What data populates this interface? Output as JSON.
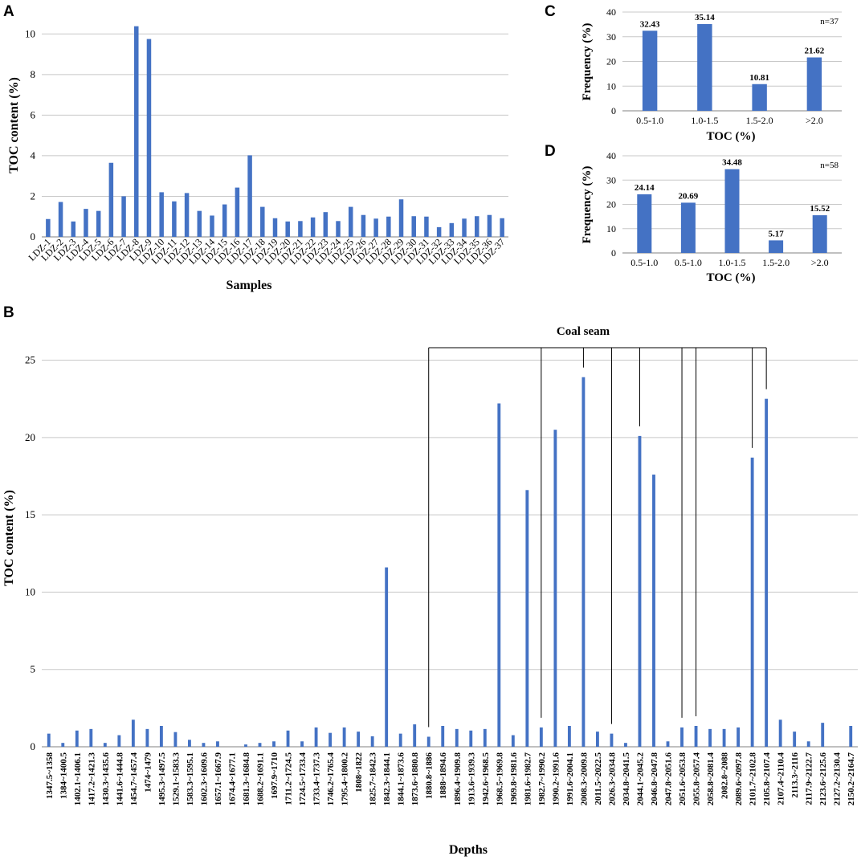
{
  "colors": {
    "bar": "#4472c4",
    "grid": "#c8c8c8",
    "axis": "#808080"
  },
  "chart_data": [
    {
      "id": "A",
      "panel_label": "A",
      "type": "bar",
      "title": "",
      "xlabel": "Samples",
      "ylabel": "TOC content (%)",
      "ylim": [
        0,
        11
      ],
      "yticks": [
        0,
        2,
        4,
        6,
        8,
        10
      ],
      "grid": true,
      "categories": [
        "LDZ-1",
        "LDZ-2",
        "LDZ-3",
        "LDZ-4",
        "LDZ-5",
        "LDZ-6",
        "LDZ-7",
        "LDZ-8",
        "LDZ-9",
        "LDZ-10",
        "LDZ-11",
        "LDZ-12",
        "LDZ-13",
        "LDZ-14",
        "LDZ-15",
        "LDZ-16",
        "LDZ-17",
        "LDZ-18",
        "LDZ-19",
        "LDZ-20",
        "LDZ-21",
        "LDZ-22",
        "LDZ-23",
        "LDZ-24",
        "LDZ-25",
        "LDZ-26",
        "LDZ-27",
        "LDZ-28",
        "LDZ-29",
        "LDZ-30",
        "LDZ-31",
        "LDZ-32",
        "LDZ-33",
        "LDZ-34",
        "LDZ-35",
        "LDZ-36",
        "LDZ-37"
      ],
      "values": [
        0.88,
        1.72,
        0.76,
        1.38,
        1.28,
        3.65,
        2.0,
        10.38,
        9.75,
        2.2,
        1.75,
        2.16,
        1.28,
        1.05,
        1.6,
        2.43,
        4.02,
        1.48,
        0.92,
        0.76,
        0.78,
        0.96,
        1.22,
        0.78,
        1.48,
        1.08,
        0.9,
        1.0,
        1.85,
        1.02,
        1.0,
        0.48,
        0.68,
        0.9,
        1.02,
        1.08,
        0.92
      ]
    },
    {
      "id": "B",
      "panel_label": "B",
      "type": "bar",
      "title": "",
      "xlabel": "Depths",
      "ylabel": "TOC content (%)",
      "ylim": [
        0,
        27
      ],
      "yticks": [
        0,
        5,
        10,
        15,
        20,
        25
      ],
      "grid": true,
      "annotation": "Coal seam",
      "coal_seam_indices": [
        27,
        35,
        38,
        40,
        42,
        45,
        46,
        50,
        51
      ],
      "categories": [
        "1347.5~1358",
        "1384~1400.5",
        "1402.1~1406.1",
        "1417.2~1421.3",
        "1430.3~1435.6",
        "1441.6~1444.8",
        "1454.7~1457.4",
        "1474~1479",
        "1495.3~1497.5",
        "1529.1~1583.3",
        "1583.3~1595.1",
        "1602.3~1609.6",
        "1657.1~1667.9",
        "1674.4~1677.1",
        "1681.3~1684.8",
        "1688.2~1691.1",
        "1697.9~1710",
        "1711.2~1724.5",
        "1724.5~1733.4",
        "1733.4~1737.3",
        "1746.2~1765.4",
        "1795.4~1800.2",
        "1808~1822",
        "1825.7~1842.3",
        "1842.3~1844.1",
        "1844.1~1873.6",
        "1873.6~1880.8",
        "1880.8~1886",
        "1888~1894.6",
        "1896.4~1909.8",
        "1913.6~1939.3",
        "1942.6~1968.5",
        "1968.5~1969.8",
        "1969.8~1981.6",
        "1981.6~1982.7",
        "1982.7~1990.2",
        "1990.2~1991.6",
        "1991.6~2004.1",
        "2008.3~2009.8",
        "2011.5~2022.5",
        "2026.3~2034.8",
        "2034.8~2041.5",
        "2044.1~2045.2",
        "2046.8~2047.8",
        "2047.8~2051.6",
        "2051.6~2053.8",
        "2055.8~2057.4",
        "2058.8~2081.4",
        "2082.8~2088",
        "2089.6~2097.8",
        "2101.7~2102.8",
        "2105.8~2107.4",
        "2107.4~2110.4",
        "2113.3~2116",
        "2117.9~2122.7",
        "2123.6~2125.6",
        "2127.2~2130.4",
        "2150.2~2164.7"
      ],
      "values": [
        0.85,
        0.25,
        1.05,
        1.15,
        0.25,
        0.75,
        1.75,
        1.15,
        1.35,
        0.95,
        0.45,
        0.25,
        0.35,
        0.0,
        0.15,
        0.25,
        0.35,
        1.05,
        0.35,
        1.25,
        0.9,
        1.25,
        0.98,
        0.68,
        11.6,
        0.85,
        1.45,
        0.65,
        1.35,
        1.15,
        1.05,
        1.15,
        22.2,
        0.75,
        16.6,
        1.25,
        20.5,
        1.35,
        23.9,
        0.98,
        0.85,
        0.25,
        20.1,
        17.6,
        0.35,
        1.25,
        1.35,
        1.15,
        1.15,
        1.25,
        18.7,
        22.5,
        1.75,
        0.98,
        0.35,
        1.55,
        0.0,
        1.35
      ]
    },
    {
      "id": "C",
      "panel_label": "C",
      "type": "bar",
      "title": "",
      "xlabel": "TOC (%)",
      "ylabel": "Frequency (%)",
      "ylim": [
        0,
        40
      ],
      "yticks": [
        0,
        10,
        20,
        30,
        40
      ],
      "grid": true,
      "note": "n=37",
      "categories": [
        "0.5-1.0",
        "1.0-1.5",
        "1.5-2.0",
        ">2.0"
      ],
      "values": [
        32.43,
        35.14,
        10.81,
        21.62
      ],
      "value_labels": [
        "32.43",
        "35.14",
        "10.81",
        "21.62"
      ]
    },
    {
      "id": "D",
      "panel_label": "D",
      "type": "bar",
      "title": "",
      "xlabel": "TOC (%)",
      "ylabel": "Frequency (%)",
      "ylim": [
        0,
        40
      ],
      "yticks": [
        0,
        10,
        20,
        30,
        40
      ],
      "grid": true,
      "note": "n=58",
      "categories": [
        "0.5-1.0",
        "0.5-1.0",
        "1.0-1.5",
        "1.5-2.0",
        ">2.0"
      ],
      "values": [
        24.14,
        20.69,
        34.48,
        5.17,
        15.52
      ],
      "value_labels": [
        "24.14",
        "20.69",
        "34.48",
        "5.17",
        "15.52"
      ]
    }
  ]
}
